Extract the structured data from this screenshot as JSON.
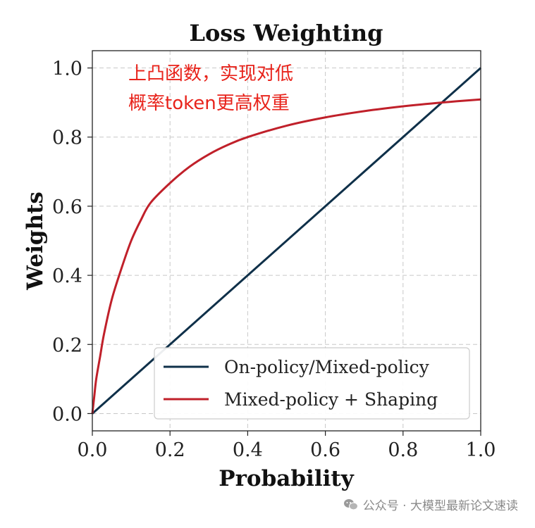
{
  "chart_data": {
    "type": "line",
    "title": "Loss Weighting",
    "xlabel": "Probability",
    "ylabel": "Weights",
    "xlim": [
      0,
      1.0
    ],
    "ylim": [
      -0.05,
      1.05
    ],
    "xticks": [
      "0.0",
      "0.2",
      "0.4",
      "0.6",
      "0.8",
      "1.0"
    ],
    "yticks": [
      "0.0",
      "0.2",
      "0.4",
      "0.6",
      "0.8",
      "1.0"
    ],
    "grid": true,
    "legend_position": "bottom-right",
    "series": [
      {
        "name": "On-policy/Mixed-policy",
        "color": "#0f3049",
        "x": [
          0,
          1.0
        ],
        "y": [
          0,
          1.0
        ]
      },
      {
        "name": "Mixed-policy + Shaping",
        "color": "#c0202a",
        "x": [
          0,
          0.005,
          0.01,
          0.02,
          0.03,
          0.05,
          0.075,
          0.1,
          0.125,
          0.15,
          0.2,
          0.25,
          0.3,
          0.35,
          0.4,
          0.5,
          0.6,
          0.7,
          0.8,
          0.9,
          1.0
        ],
        "y": [
          0,
          0.05,
          0.1,
          0.165,
          0.23,
          0.33,
          0.42,
          0.5,
          0.56,
          0.61,
          0.667,
          0.714,
          0.75,
          0.778,
          0.8,
          0.833,
          0.857,
          0.875,
          0.889,
          0.9,
          0.909
        ]
      }
    ]
  },
  "annotation": {
    "line1": "上凸函数，实现对低",
    "line2": "概率token更高权重",
    "color": "#e8231b"
  },
  "watermark": {
    "text": "公众号 · 大模型最新论文速读",
    "icon": "wechat-icon"
  }
}
